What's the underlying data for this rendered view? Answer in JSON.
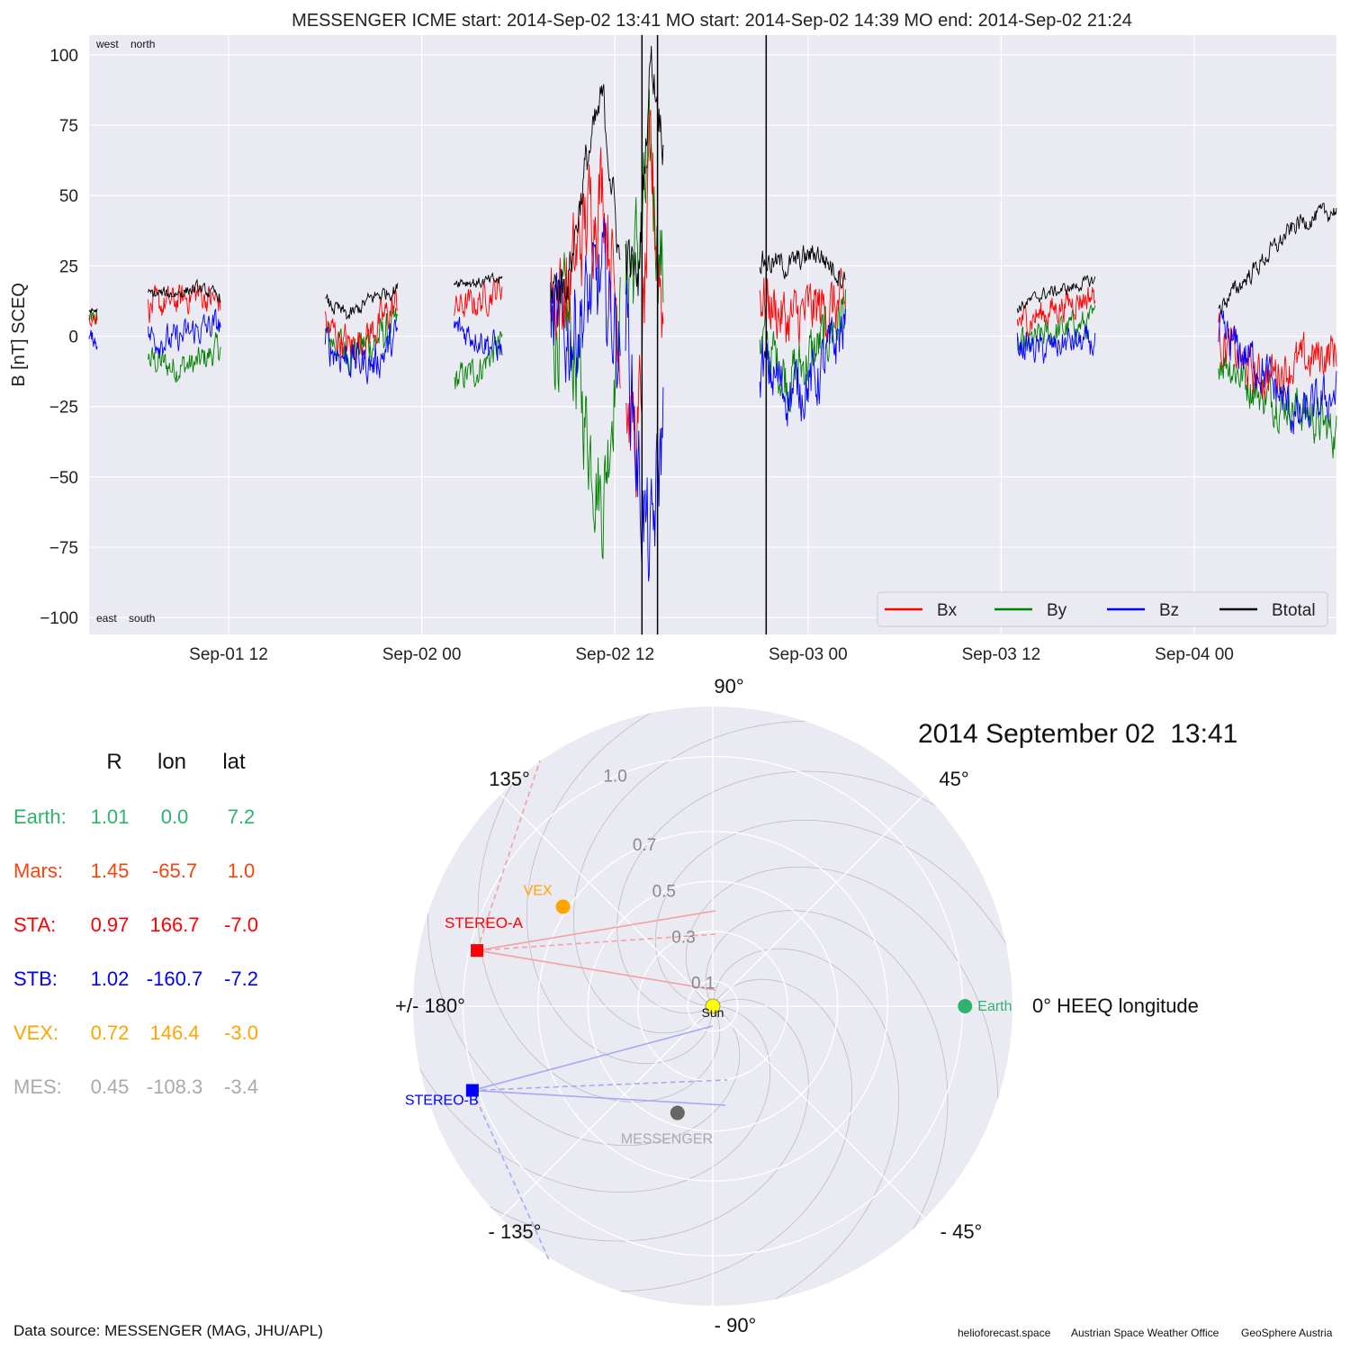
{
  "title": "MESSENGER    ICME start: 2014-Sep-02 13:41   MO start: 2014-Sep-02 14:39   MO end: 2014-Sep-02 21:24",
  "colors": {
    "bx": "#ff0000",
    "by": "#008000",
    "bz": "#0000ff",
    "btotal": "#000000"
  },
  "chart_data": [
    {
      "type": "line",
      "ylabel": "B [nT] SCEQ",
      "ylim": [
        -106,
        107
      ],
      "yticks": [
        100,
        75,
        50,
        25,
        0,
        -25,
        -50,
        -75,
        -100
      ],
      "ytick_labels": [
        "100",
        "75",
        "50",
        "25",
        "0",
        "−25",
        "−50",
        "−75",
        "−100"
      ],
      "xlim": [
        "2014-09-01T03:20",
        "2014-09-04T08:50"
      ],
      "xticks": [
        "2014-09-01T12:00",
        "2014-09-02T00:00",
        "2014-09-02T12:00",
        "2014-09-03T00:00",
        "2014-09-03T12:00",
        "2014-09-04T00:00"
      ],
      "xtick_labels": [
        "Sep-01 12",
        "Sep-02 00",
        "Sep-02 12",
        "Sep-03 00",
        "Sep-03 12",
        "Sep-04 00"
      ],
      "vertical_lines": [
        "2014-09-02T13:41",
        "2014-09-02T14:39",
        "2014-09-02T21:24"
      ],
      "corner_labels": {
        "top": "west    north",
        "bottom": "east    south"
      },
      "legend": [
        "Bx",
        "By",
        "Bz",
        "Btotal"
      ],
      "legend_position": "lower-right",
      "grid": true,
      "segments": [
        {
          "start": "2014-09-01T03:20",
          "end": "2014-09-01T03:50",
          "bt": [
            9,
            9
          ],
          "bx": [
            7,
            7
          ],
          "by": [
            6,
            6
          ],
          "bz": [
            0,
            -2
          ],
          "amp": 2
        },
        {
          "start": "2014-09-01T07:00",
          "end": "2014-09-01T11:30",
          "bt": [
            15,
            15,
            17,
            14
          ],
          "bx": [
            10,
            12,
            15,
            12
          ],
          "by": [
            -8,
            -11,
            -10,
            -4
          ],
          "bz": [
            0,
            -2,
            2,
            4
          ],
          "amp": 4
        },
        {
          "start": "2014-09-01T18:00",
          "end": "2014-09-01T22:30",
          "bt": [
            12,
            7,
            14,
            17
          ],
          "bx": [
            4,
            -4,
            2,
            12
          ],
          "by": [
            0,
            -5,
            -2,
            4
          ],
          "bz": [
            -3,
            -8,
            -10,
            0
          ],
          "amp": 5
        },
        {
          "start": "2014-09-02T02:00",
          "end": "2014-09-02T05:00",
          "bt": [
            20,
            19,
            20
          ],
          "bx": [
            10,
            12,
            18
          ],
          "by": [
            -16,
            -12,
            -2
          ],
          "bz": [
            3,
            0,
            -5
          ],
          "amp": 4
        },
        {
          "start": "2014-09-02T08:00",
          "end": "2014-09-02T12:20",
          "bt": [
            17,
            20,
            60,
            85,
            25
          ],
          "bx": [
            15,
            15,
            40,
            55,
            0
          ],
          "by": [
            0,
            5,
            -30,
            -60,
            10
          ],
          "bz": [
            5,
            0,
            10,
            20,
            -5
          ],
          "amp": 14
        },
        {
          "start": "2014-09-02T12:40",
          "end": "2014-09-02T15:00",
          "bt": [
            30,
            20,
            100,
            70
          ],
          "bx": [
            -20,
            -40,
            60,
            10
          ],
          "by": [
            20,
            30,
            60,
            20
          ],
          "bz": [
            10,
            -50,
            -80,
            -30
          ],
          "amp": 16
        },
        {
          "start": "2014-09-02T21:00",
          "end": "2014-09-03T02:20",
          "bt": [
            27,
            25,
            30,
            20
          ],
          "bx": [
            15,
            5,
            10,
            10
          ],
          "by": [
            0,
            -15,
            -5,
            10
          ],
          "bz": [
            -10,
            -20,
            -15,
            5
          ],
          "amp": 8
        },
        {
          "start": "2014-09-03T13:00",
          "end": "2014-09-03T17:50",
          "bt": [
            10,
            15,
            17,
            20
          ],
          "bx": [
            5,
            8,
            12,
            15
          ],
          "by": [
            -5,
            0,
            3,
            5
          ],
          "bz": [
            -3,
            -5,
            -2,
            -3
          ],
          "amp": 4
        },
        {
          "start": "2014-09-04T01:30",
          "end": "2014-09-04T08:50",
          "bt": [
            10,
            25,
            40,
            45
          ],
          "bx": [
            0,
            -15,
            -10,
            -5
          ],
          "by": [
            -5,
            -20,
            -25,
            -35
          ],
          "bz": [
            0,
            -10,
            -30,
            -20
          ],
          "amp": 6
        }
      ]
    },
    {
      "type": "polar",
      "title": "2014 September 02  13:41",
      "angle_labels": [
        "90°",
        "45°",
        "0° HEEQ longitude",
        "- 45°",
        "- 90°",
        "- 135°",
        "+/- 180°",
        "135°"
      ],
      "angles": [
        90,
        45,
        0,
        -45,
        -90,
        -135,
        180,
        135
      ],
      "radial_max": 1.2,
      "radial_ticks": [
        0.1,
        0.3,
        0.5,
        0.7,
        1.0
      ],
      "radial_tick_labels": [
        "0.1",
        "0.3",
        "0.5",
        "0.7",
        "1.0"
      ],
      "bodies": [
        {
          "name": "Sun",
          "r": 0.0,
          "lon": 0.0,
          "marker": "circle",
          "color": "#ffff00"
        },
        {
          "name": "Earth",
          "r": 1.01,
          "lon": 0.0,
          "marker": "circle",
          "color": "#2eb36b"
        },
        {
          "name": "VEX",
          "r": 0.72,
          "lon": 146.4,
          "marker": "circle",
          "color": "#ffa500"
        },
        {
          "name": "STEREO-A",
          "r": 0.97,
          "lon": 166.7,
          "marker": "square",
          "color": "#ff0000"
        },
        {
          "name": "STEREO-B",
          "r": 1.02,
          "lon": -160.7,
          "marker": "square",
          "color": "#0000ff"
        },
        {
          "name": "MESSENGER",
          "r": 0.45,
          "lon": -108.3,
          "marker": "circle",
          "color": "#666666",
          "label_color": "#aaaaaa"
        }
      ]
    }
  ],
  "table": {
    "headers": [
      "R",
      "lon",
      "lat"
    ],
    "rows": [
      {
        "name": "Earth:",
        "r": "1.01",
        "lon": "0.0",
        "lat": "7.2",
        "color": "#2eb36b"
      },
      {
        "name": "Mars:",
        "r": "1.45",
        "lon": "-65.7",
        "lat": "1.0",
        "color": "#f5450f"
      },
      {
        "name": "STA:",
        "r": "0.97",
        "lon": "166.7",
        "lat": "-7.0",
        "color": "#ff0000"
      },
      {
        "name": "STB:",
        "r": "1.02",
        "lon": "-160.7",
        "lat": "-7.2",
        "color": "#0000ff"
      },
      {
        "name": "VEX:",
        "r": "0.72",
        "lon": "146.4",
        "lat": "-3.0",
        "color": "#ffa500"
      },
      {
        "name": "MES:",
        "r": "0.45",
        "lon": "-108.3",
        "lat": "-3.4",
        "color": "#aaaaaa"
      }
    ]
  },
  "footer": {
    "source": "Data source: MESSENGER (MAG, JHU/APL)",
    "credits": [
      "helioforecast.space",
      "Austrian Space Weather Office",
      "GeoSphere Austria"
    ]
  }
}
